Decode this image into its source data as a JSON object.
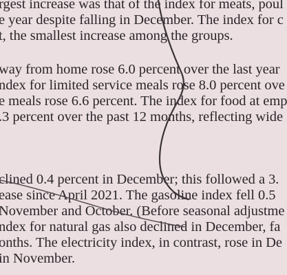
{
  "document": {
    "paragraph_1": [
      "rgest increase was that of the index for meats, poul",
      "e year despite falling in December. The index for c",
      "t, the smallest increase among the groups."
    ],
    "paragraph_2": [
      "way from home rose 6.0 percent over the last year",
      "ndex for limited service meals rose 8.0 percent ove",
      "e meals rose 6.6 percent. The index for food at emp",
      ".3 percent over the past 12 months, reflecting wide"
    ],
    "paragraph_3": [
      "clined 0.4 percent in December; this followed a 3.",
      "ease since April 2021. The gasoline index fell 0.5",
      "November and October. (Before seasonal adjustme",
      "ndex for natural gas also declined in December, fa",
      "onths. The electricity index, in contrast, rose in De",
      "in November."
    ]
  },
  "annotations": {
    "pen_mark_color": "#3a3436"
  }
}
